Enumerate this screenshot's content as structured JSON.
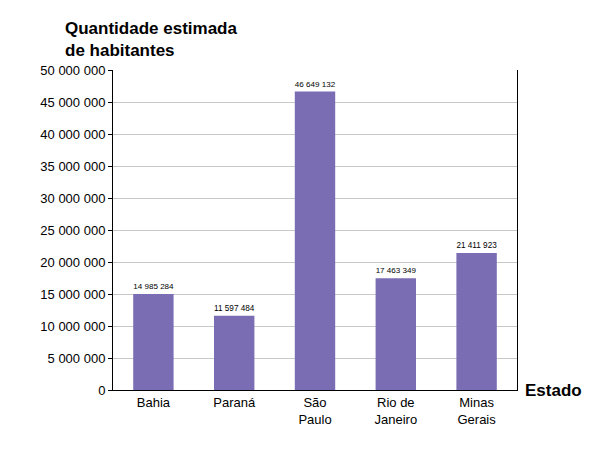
{
  "chart_data": {
    "type": "bar",
    "ylabel": "Quantidade estimada de habitantes",
    "xlabel": "Estado",
    "categories": [
      "Bahia",
      "Paraná",
      "São Paulo",
      "Rio de Janeiro",
      "Minas Gerais"
    ],
    "values": [
      14985284,
      11597484,
      46649132,
      17463349,
      21411923
    ],
    "value_labels": [
      "14 985 284",
      "11 597 484",
      "46 649 132",
      "17 463 349",
      "21 411 923"
    ],
    "data_labels": true,
    "color": "#7b6db3",
    "ylim": [
      0,
      50000000
    ],
    "yticks": [
      0,
      {
        "value": 5000000,
        "label": "5 000 000"
      },
      {
        "value": 10000000,
        "label": "10 000 000"
      },
      {
        "value": 15000000,
        "label": "15 000 000"
      },
      {
        "value": 20000000,
        "label": "20 000 000"
      },
      {
        "value": 25000000,
        "label": "25 000 000"
      },
      {
        "value": 30000000,
        "label": "30 000 000"
      },
      {
        "value": 35000000,
        "label": "35 000 000"
      },
      {
        "value": 40000000,
        "label": "40 000 000"
      },
      {
        "value": 45000000,
        "label": "45 000 000"
      },
      {
        "value": 50000000,
        "label": "50 000 000"
      }
    ],
    "grid": true
  }
}
